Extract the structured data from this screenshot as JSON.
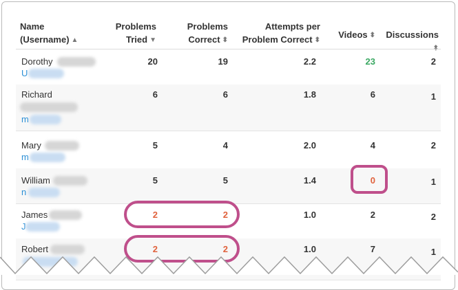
{
  "header": {
    "name_line1": "Name",
    "name_line2": "(Username)",
    "tried_line1": "Problems",
    "tried_line2": "Tried",
    "correct_line1": "Problems",
    "correct_line2": "Correct",
    "attempts_line1": "Attempts per",
    "attempts_line2": "Problem Correct",
    "videos": "Videos",
    "discussions": "Discussions",
    "sort_up": "▲",
    "sort_down": "▼",
    "sort_both": "⬍"
  },
  "rows": [
    {
      "first": "Dorothy",
      "u": "U",
      "tried": "20",
      "correct": "19",
      "attempts": "2.2",
      "videos": "23",
      "discussions": "2"
    },
    {
      "first": "Richard",
      "u": "m",
      "tried": "6",
      "correct": "6",
      "attempts": "1.8",
      "videos": "6",
      "discussions": "1"
    },
    {
      "first": "Mary",
      "u": "m",
      "tried": "5",
      "correct": "4",
      "attempts": "2.0",
      "videos": "4",
      "discussions": "2"
    },
    {
      "first": "William",
      "u": "n",
      "tried": "5",
      "correct": "5",
      "attempts": "1.4",
      "videos": "0",
      "discussions": "1"
    },
    {
      "first": "James",
      "u": "J",
      "tried": "2",
      "correct": "2",
      "attempts": "1.0",
      "videos": "2",
      "discussions": "2"
    },
    {
      "first": "Robert",
      "u": "",
      "tried": "2",
      "correct": "2",
      "attempts": "1.0",
      "videos": "7",
      "discussions": "1"
    }
  ],
  "colors": {
    "link": "#2a8fd6",
    "highlight": "#bf4f8b",
    "good": "#3aa862",
    "warn": "#e0623c"
  }
}
